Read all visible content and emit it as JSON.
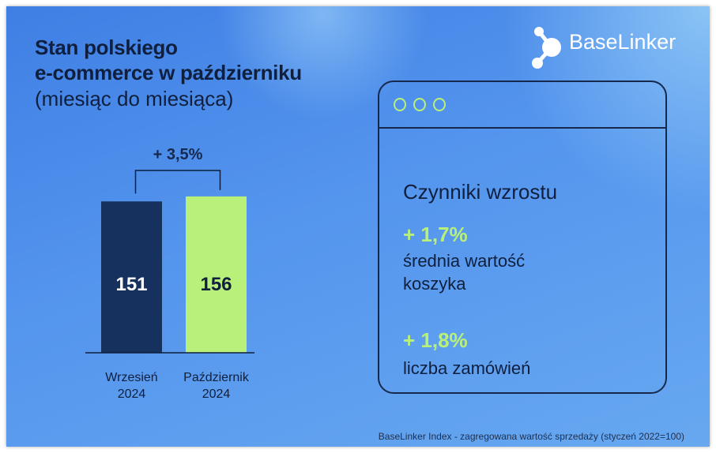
{
  "header": {
    "title_line1": "Stan polskiego",
    "title_line2": "e-commerce w październiku",
    "subtitle": "(miesiąc do miesiąca)"
  },
  "logo": {
    "text": "BaseLinker"
  },
  "chart_data": {
    "type": "bar",
    "categories": [
      "Wrzesień 2024",
      "Październik 2024"
    ],
    "category_lines": [
      [
        "Wrzesień",
        "2024"
      ],
      [
        "Październik",
        "2024"
      ]
    ],
    "values": [
      151,
      156
    ],
    "colors": [
      "#16315e",
      "#b9f07a"
    ],
    "label_colors": [
      "#ffffff",
      "#0f1f3d"
    ],
    "annotation": "+ 3,5%"
  },
  "factors": {
    "title": "Czynniki wzrostu",
    "items": [
      {
        "value": "+ 1,7%",
        "label_line1": "średnia wartość",
        "label_line2": "koszyka"
      },
      {
        "value": "+ 1,8%",
        "label_line1": "liczba zamówień"
      }
    ],
    "accent": "#b9f07a"
  },
  "footer": {
    "note": "BaseLinker Index - zagregowana wartość sprzedaży (styczeń 2022=100)"
  }
}
